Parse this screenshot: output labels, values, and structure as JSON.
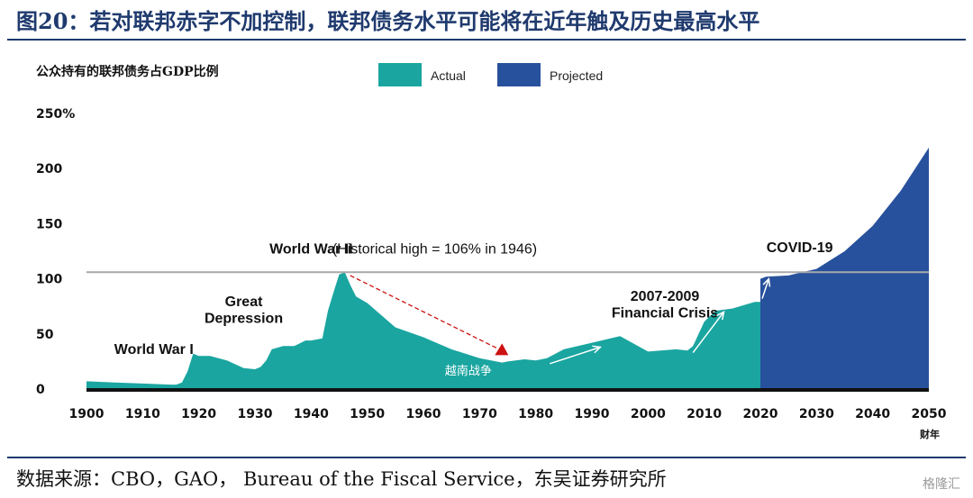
{
  "title": "图20：若对联邦赤字不加控制，联邦债务水平可能将在近年触及历史最高水平",
  "source": "数据来源：CBO，GAO，  Bureau of the Fiscal Service，东吴证券研究所",
  "watermark": "格隆汇",
  "colors": {
    "actual": "#1aa5a0",
    "projected": "#27519c",
    "title": "#1f3a6e",
    "arrow": "#cc1111"
  },
  "chart_data": {
    "type": "area",
    "ylabel": "公众持有的联邦债务占GDP比例",
    "xlabel": "财年",
    "ylim": [
      0,
      250
    ],
    "xlim": [
      1900,
      2050
    ],
    "yticks": [
      "0",
      "50",
      "100",
      "150",
      "200",
      "250%"
    ],
    "ytick_values": [
      0,
      50,
      100,
      150,
      200,
      250
    ],
    "xticks": [
      1900,
      1910,
      1920,
      1930,
      1940,
      1950,
      1960,
      1970,
      1980,
      1990,
      2000,
      2010,
      2020,
      2030,
      2040,
      2050
    ],
    "legend": [
      "Actual",
      "Projected"
    ],
    "legend_position": "top",
    "reference_line": 106,
    "series": [
      {
        "name": "Actual",
        "x": [
          1900,
          1905,
          1910,
          1915,
          1916,
          1917,
          1918,
          1919,
          1920,
          1922,
          1925,
          1928,
          1930,
          1931,
          1932,
          1933,
          1935,
          1937,
          1939,
          1940,
          1942,
          1943,
          1944,
          1945,
          1946,
          1947,
          1948,
          1950,
          1955,
          1960,
          1965,
          1970,
          1974,
          1975,
          1978,
          1980,
          1982,
          1985,
          1990,
          1995,
          2000,
          2005,
          2007,
          2008,
          2010,
          2012,
          2015,
          2019,
          2020
        ],
        "values": [
          7,
          6,
          5,
          4,
          4,
          6,
          16,
          32,
          30,
          30,
          26,
          19,
          18,
          20,
          26,
          36,
          39,
          39,
          44,
          44,
          46,
          71,
          88,
          104,
          106,
          94,
          84,
          78,
          56,
          47,
          36,
          28,
          24,
          25,
          27,
          26,
          28,
          36,
          42,
          48,
          34,
          36,
          35,
          39,
          61,
          71,
          73,
          79,
          79
        ]
      },
      {
        "name": "Projected",
        "x": [
          2020,
          2021,
          2025,
          2030,
          2035,
          2040,
          2045,
          2050
        ],
        "values": [
          100,
          102,
          103,
          109,
          125,
          148,
          180,
          219
        ]
      }
    ],
    "annotations": [
      {
        "text": "World War I",
        "year": 1912,
        "value": 32
      },
      {
        "text": "Great",
        "year": 1928,
        "value": 75
      },
      {
        "text": "Depression",
        "year": 1928,
        "value": 60
      },
      {
        "text": "World War II",
        "year": 1940,
        "value": 123
      },
      {
        "text": "(Historical high = 106% in 1946)",
        "year": 1962,
        "value": 123
      },
      {
        "text": "越南战争",
        "year": 1968,
        "value": 13
      },
      {
        "text": "2007-2009",
        "year": 2003,
        "value": 80
      },
      {
        "text": "Financial Crisis",
        "year": 2003,
        "value": 65
      },
      {
        "text": "COVID-19",
        "year": 2027,
        "value": 124
      }
    ]
  }
}
